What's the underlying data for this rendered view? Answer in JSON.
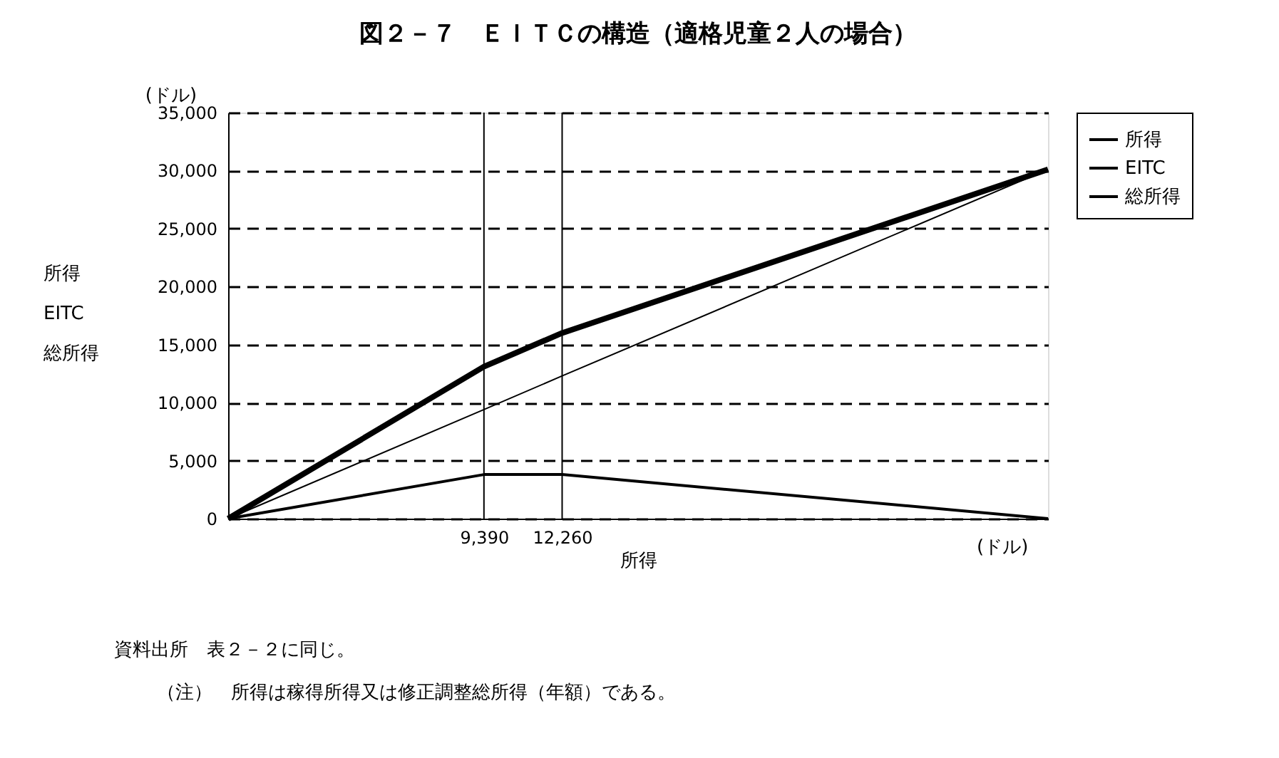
{
  "chart_data": {
    "type": "line",
    "title": "図２－７　ＥＩＴＣの構造（適格児童２人の場合）",
    "xlabel": "所得",
    "ylabel": "所得\nEITC\n総所得",
    "x": [
      0,
      9390,
      12260,
      30095
    ],
    "series": [
      {
        "name": "所得",
        "color": "#000000",
        "values": [
          0,
          9400,
          12300,
          30100
        ]
      },
      {
        "name": "EITC",
        "color": "#000000",
        "values": [
          0,
          3800,
          3800,
          0
        ]
      },
      {
        "name": "総所得",
        "color": "#000000",
        "values": [
          0,
          13100,
          16000,
          30100
        ]
      }
    ],
    "xlim": [
      0,
      30095
    ],
    "xticks": [
      {
        "value": 9390,
        "label": "9,390"
      },
      {
        "value": 12260,
        "label": "12,260"
      }
    ],
    "ylim": [
      0,
      35000
    ],
    "yticks": [
      {
        "value": 0,
        "label": "0"
      },
      {
        "value": 5000,
        "label": "5,000"
      },
      {
        "value": 10000,
        "label": "10,000"
      },
      {
        "value": 15000,
        "label": "15,000"
      },
      {
        "value": 20000,
        "label": "20,000"
      },
      {
        "value": 25000,
        "label": "25,000"
      },
      {
        "value": 30000,
        "label": "30,000"
      },
      {
        "value": 35000,
        "label": "35,000"
      }
    ],
    "ref_lines": [
      {
        "axis": "x",
        "value": 9390,
        "color": "#000000"
      },
      {
        "axis": "x",
        "value": 12260,
        "color": "#000000"
      }
    ],
    "grid": "y",
    "legend": "right",
    "marker": "none",
    "line_style": "solid",
    "annotations": [
      "(ドル)",
      "(ドル)",
      "資料出所　表２－２に同じ。",
      "（注）　所得は稼得所得又は修正調整総所得（年額）である。"
    ]
  }
}
